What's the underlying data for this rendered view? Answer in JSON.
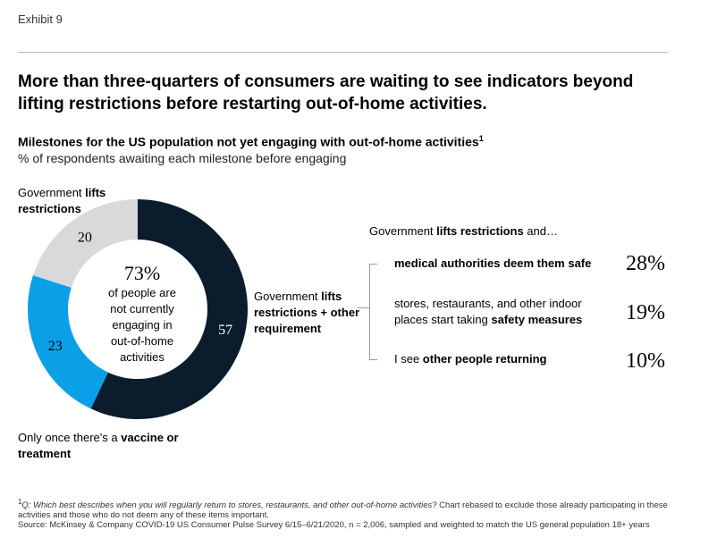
{
  "exhibit": "Exhibit 9",
  "title": "More than three-quarters of consumers are waiting to see indicators beyond lifting restrictions before restarting out-of-home activities.",
  "subtitle": "Milestones for the US population not yet engaging with out-of-home activities",
  "subtitle_footnote_mark": "1",
  "subnote": "% of respondents awaiting each milestone before engaging",
  "labels": {
    "gov_prefix": "Government ",
    "gov_bold": "lifts restrictions",
    "other_prefix": "Government ",
    "other_bold": "lifts restrictions + other requirement",
    "vac_prefix": "Only once there's a ",
    "vac_bold": "vaccine or treatment"
  },
  "center": {
    "value": "73%",
    "line1": "of people are",
    "line2": "not currently",
    "line3": "engaging in",
    "line4": "out-of-home",
    "line5": "activities"
  },
  "right": {
    "header_prefix": "Government ",
    "header_bold": "lifts restrictions",
    "header_suffix": " and…",
    "milestones": [
      {
        "pre": "",
        "bold": "medical authorities deem them safe",
        "post": "",
        "pct": "28%"
      },
      {
        "pre": "stores, restaurants, and other indoor places start taking ",
        "bold": "safety measures",
        "post": "",
        "pct": "19%"
      },
      {
        "pre": "I see ",
        "bold": "other people returning",
        "post": "",
        "pct": "10%"
      }
    ]
  },
  "footnote": {
    "mark": "1",
    "question": "Q: Which best describes when you will regularly return to stores, restaurants, and other out-of-home activities?",
    "note": " Chart rebased to exclude those already participating in these activities and those who do not deem any of these items important.",
    "source": "Source: McKinsey & Company COVID-19 US Consumer Pulse Survey 6/15–6/21/2020, n = 2,006, sampled and weighted to match the US general population 18+ years"
  },
  "chart_data": {
    "type": "pie",
    "donut": true,
    "series": [
      {
        "name": "Government lifts restrictions + other requirement",
        "value": 57,
        "label": "57",
        "color": "#0b1c2c"
      },
      {
        "name": "Only once there's a vaccine or treatment",
        "value": 23,
        "label": "23",
        "color": "#0aa0e8"
      },
      {
        "name": "Government lifts restrictions",
        "value": 20,
        "label": "20",
        "color": "#d9d9d9"
      }
    ]
  },
  "colors": {
    "dark": "#0b1c2c",
    "blue": "#0aa0e8",
    "gray": "#d9d9d9",
    "text": "#000000"
  }
}
